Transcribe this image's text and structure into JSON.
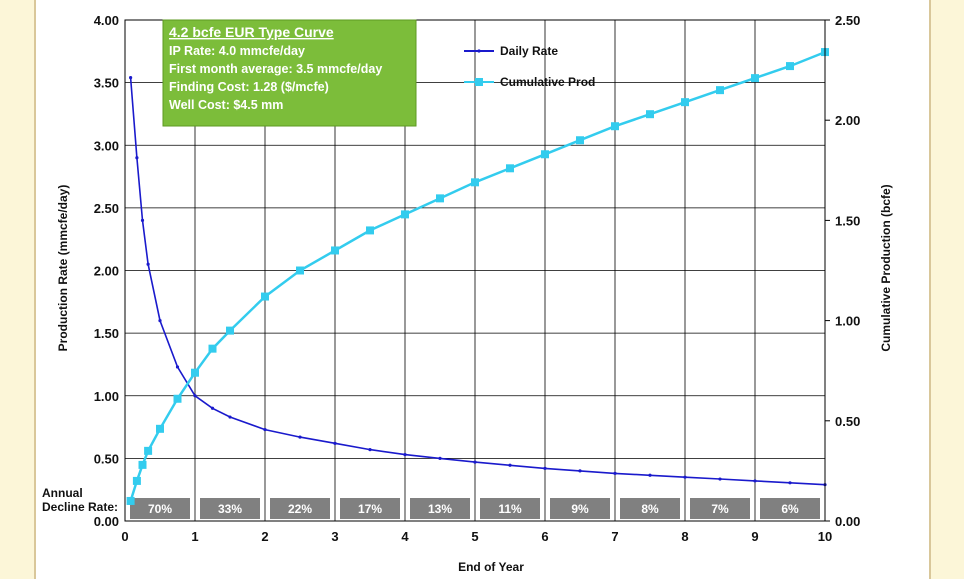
{
  "chart_data": {
    "type": "line",
    "xlabel": "End of Year",
    "ylabel": "Production Rate (mmcfe/day)",
    "y2label": "Cumulative Production (bcfe)",
    "xlim": [
      0,
      10
    ],
    "ylim": [
      0,
      4
    ],
    "y2lim": [
      0,
      2.5
    ],
    "x_ticks": [
      "0",
      "1",
      "2",
      "3",
      "4",
      "5",
      "6",
      "7",
      "8",
      "9",
      "10"
    ],
    "y_ticks": [
      "0.00",
      "0.50",
      "1.00",
      "1.50",
      "2.00",
      "2.50",
      "3.00",
      "3.50",
      "4.00"
    ],
    "y2_ticks": [
      "0.00",
      "0.50",
      "1.00",
      "1.50",
      "2.00",
      "2.50"
    ],
    "grid": true,
    "legend_position": "top-right",
    "series": [
      {
        "name": "Daily Rate",
        "axis": "left",
        "color": "#1a1acc",
        "x": [
          0.08,
          0.17,
          0.25,
          0.33,
          0.5,
          0.75,
          1,
          1.25,
          1.5,
          2,
          2.5,
          3,
          3.5,
          4,
          4.5,
          5,
          5.5,
          6,
          6.5,
          7,
          7.5,
          8,
          8.5,
          9,
          9.5,
          10
        ],
        "y": [
          3.54,
          2.9,
          2.4,
          2.05,
          1.6,
          1.23,
          1.0,
          0.9,
          0.83,
          0.73,
          0.67,
          0.62,
          0.57,
          0.53,
          0.5,
          0.47,
          0.445,
          0.42,
          0.4,
          0.38,
          0.365,
          0.35,
          0.335,
          0.32,
          0.305,
          0.29
        ]
      },
      {
        "name": "Cumulative Prod",
        "axis": "right",
        "color": "#33ccee",
        "x": [
          0.08,
          0.17,
          0.25,
          0.33,
          0.5,
          0.75,
          1,
          1.25,
          1.5,
          2,
          2.5,
          3,
          3.5,
          4,
          4.5,
          5,
          5.5,
          6,
          6.5,
          7,
          7.5,
          8,
          8.5,
          9,
          9.5,
          10
        ],
        "y": [
          0.1,
          0.2,
          0.28,
          0.35,
          0.46,
          0.61,
          0.74,
          0.86,
          0.95,
          1.12,
          1.25,
          1.35,
          1.45,
          1.53,
          1.61,
          1.69,
          1.76,
          1.83,
          1.9,
          1.97,
          2.03,
          2.09,
          2.15,
          2.21,
          2.27,
          2.34
        ]
      }
    ],
    "annual_decline": {
      "label_line1": "Annual",
      "label_line2": "Decline Rate:",
      "values": [
        "70%",
        "33%",
        "22%",
        "17%",
        "13%",
        "11%",
        "9%",
        "8%",
        "7%",
        "6%"
      ]
    },
    "callout": {
      "title": "4.2 bcfe EUR Type Curve",
      "lines": [
        "IP Rate: 4.0 mmcfe/day",
        "First month average: 3.5 mmcfe/day",
        "Finding Cost:  1.28 ($/mcfe)",
        "Well Cost:  $4.5 mm"
      ]
    }
  }
}
